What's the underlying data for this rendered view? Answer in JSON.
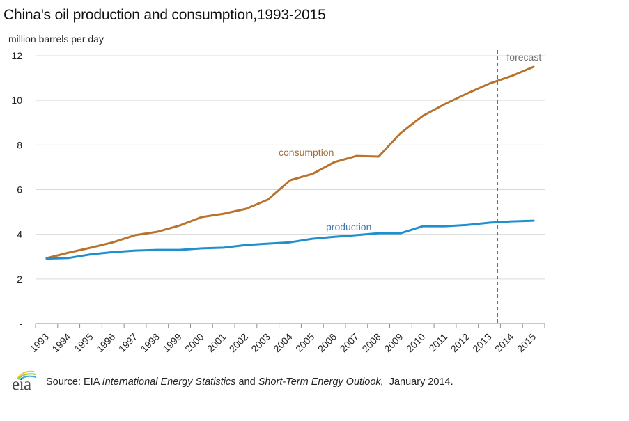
{
  "chart_data": {
    "type": "line",
    "title": "China's oil production and consumption,1993-2015",
    "ylabel": "million barrels per day",
    "xlabel": "",
    "ylim": [
      0,
      12
    ],
    "yticks": [
      0,
      2,
      4,
      6,
      8,
      10,
      12
    ],
    "ytick_labels": [
      "-",
      "2",
      "4",
      "6",
      "8",
      "10",
      "12"
    ],
    "grid": true,
    "categories": [
      "1993",
      "1994",
      "1995",
      "1996",
      "1997",
      "1998",
      "1999",
      "2000",
      "2001",
      "2002",
      "2003",
      "2004",
      "2005",
      "2006",
      "2007",
      "2008",
      "2009",
      "2010",
      "2011",
      "2012",
      "2013",
      "2014",
      "2015"
    ],
    "series": [
      {
        "name": "consumption",
        "color": "#b8732f",
        "label_color": "#a0703a",
        "values": [
          2.93,
          3.18,
          3.4,
          3.64,
          3.96,
          4.11,
          4.39,
          4.77,
          4.92,
          5.14,
          5.55,
          6.42,
          6.7,
          7.23,
          7.51,
          7.48,
          8.54,
          9.31,
          9.84,
          10.31,
          10.75,
          11.09,
          11.5
        ]
      },
      {
        "name": "production",
        "color": "#1f8fd0",
        "label_color": "#3a78b5",
        "values": [
          2.91,
          2.94,
          3.1,
          3.2,
          3.27,
          3.3,
          3.3,
          3.37,
          3.4,
          3.52,
          3.58,
          3.64,
          3.8,
          3.89,
          3.96,
          4.05,
          4.05,
          4.36,
          4.36,
          4.42,
          4.52,
          4.58,
          4.61
        ]
      }
    ],
    "annotations": [
      {
        "text": "forecast",
        "type": "vertical-dashed-line",
        "between": [
          "2013",
          "2014"
        ],
        "color": "#707070"
      }
    ]
  },
  "source": {
    "logo": "eia",
    "prefix": "Source: EIA ",
    "italic1": "International Energy Statistics",
    "middle": " and ",
    "italic2": "Short-Term Energy Outlook,",
    "suffix": "  January 2014."
  }
}
